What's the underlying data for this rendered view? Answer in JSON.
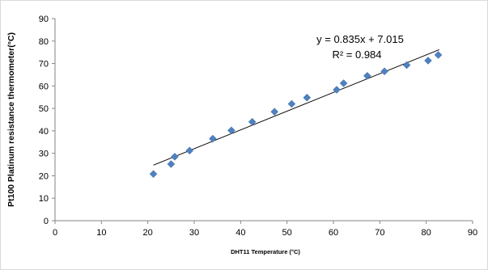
{
  "chart_data": {
    "type": "scatter",
    "xlabel": "DHT11 Temperature (°C)",
    "ylabel": "Pt100 Platinum  resistance thermometer(°C)",
    "xlim": [
      0,
      90
    ],
    "ylim": [
      0,
      90
    ],
    "xticks": [
      "0",
      "10",
      "20",
      "30",
      "40",
      "50",
      "60",
      "70",
      "80",
      "90"
    ],
    "yticks": [
      "0",
      "10",
      "20",
      "30",
      "40",
      "50",
      "60",
      "70",
      "80",
      "90"
    ],
    "grid": false,
    "marker_color": "#4f81bd",
    "trendline": {
      "slope": 0.835,
      "intercept": 7.015,
      "x_range": [
        21.2,
        82.8
      ],
      "equation": "y = 0.835x + 7.015",
      "r2": "R² = 0.984"
    },
    "points": [
      {
        "x": 21.2,
        "y": 20.8
      },
      {
        "x": 25.0,
        "y": 25.2
      },
      {
        "x": 25.8,
        "y": 28.5
      },
      {
        "x": 29.0,
        "y": 31.2
      },
      {
        "x": 34.0,
        "y": 36.5
      },
      {
        "x": 38.0,
        "y": 40.2
      },
      {
        "x": 42.5,
        "y": 44.0
      },
      {
        "x": 47.3,
        "y": 48.5
      },
      {
        "x": 51.0,
        "y": 52.0
      },
      {
        "x": 54.3,
        "y": 54.8
      },
      {
        "x": 60.7,
        "y": 58.3
      },
      {
        "x": 62.2,
        "y": 61.2
      },
      {
        "x": 67.3,
        "y": 64.5
      },
      {
        "x": 71.0,
        "y": 66.5
      },
      {
        "x": 75.8,
        "y": 69.3
      },
      {
        "x": 80.4,
        "y": 71.3
      },
      {
        "x": 82.6,
        "y": 73.8
      }
    ]
  }
}
